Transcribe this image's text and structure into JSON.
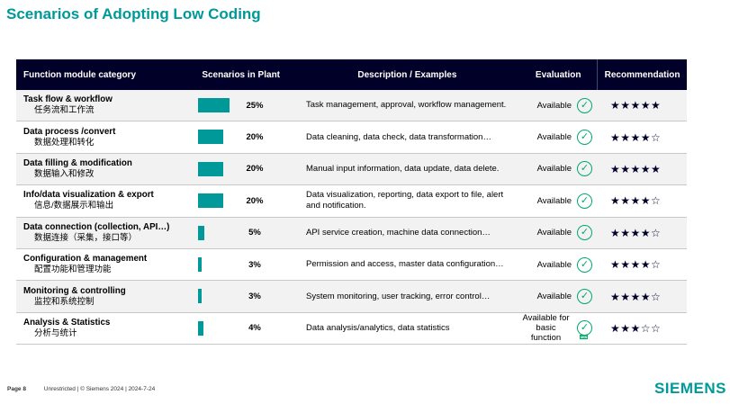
{
  "title": "Scenarios of Adopting Low Coding",
  "table": {
    "headers": [
      "Function module category",
      "Scenarios in Plant",
      "Description / Examples",
      "Evaluation",
      "Recommendation"
    ],
    "rows": [
      {
        "name_en": "Task flow & workflow",
        "name_zh": "任务流和工作流",
        "percent": 25,
        "percent_label": "25%",
        "description": "Task management, approval, workflow management.",
        "evaluation": "Available",
        "icon": "check-circle-icon",
        "stars": "★★★★★",
        "rating": 5
      },
      {
        "name_en": "Data process /convert",
        "name_zh": "数据处理和转化",
        "percent": 20,
        "percent_label": "20%",
        "description": "Data cleaning, data check, data transformation…",
        "evaluation": "Available",
        "icon": "check-circle-icon",
        "stars": "★★★★☆",
        "rating": 4
      },
      {
        "name_en": "Data filling & modification",
        "name_zh": "数据输入和修改",
        "percent": 20,
        "percent_label": "20%",
        "description": "Manual input information, data update, data delete.",
        "evaluation": "Available",
        "icon": "check-circle-icon",
        "stars": "★★★★★",
        "rating": 5
      },
      {
        "name_en": "Info/data visualization & export",
        "name_zh": "信息/数据展示和输出",
        "percent": 20,
        "percent_label": "20%",
        "description": "Data visualization, reporting, data export to file, alert and notification.",
        "evaluation": "Available",
        "icon": "check-circle-icon",
        "stars": "★★★★☆",
        "rating": 4
      },
      {
        "name_en": "Data connection (collection, API…)",
        "name_zh": "数据连接（采集，接口等）",
        "percent": 5,
        "percent_label": "5%",
        "description": "API service creation, machine data connection…",
        "evaluation": "Available",
        "icon": "check-circle-icon",
        "stars": "★★★★☆",
        "rating": 4
      },
      {
        "name_en": "Configuration & management",
        "name_zh": "配置功能和管理功能",
        "percent": 3,
        "percent_label": "3%",
        "description": "Permission and access, master data configuration…",
        "evaluation": "Available",
        "icon": "check-circle-icon",
        "stars": "★★★★☆",
        "rating": 4
      },
      {
        "name_en": "Monitoring & controlling",
        "name_zh": "监控和系统控制",
        "percent": 3,
        "percent_label": "3%",
        "description": "System monitoring, user tracking, error control…",
        "evaluation": "Available",
        "icon": "check-circle-icon",
        "stars": "★★★★☆",
        "rating": 4
      },
      {
        "name_en": "Analysis & Statistics",
        "name_zh": "分析与统计",
        "percent": 4,
        "percent_label": "4%",
        "description": "Data analysis/analytics, data statistics",
        "evaluation": "Available for basic function",
        "icon": "check-circle-min-icon",
        "icon_badge": "MIN",
        "stars": "★★★☆☆",
        "rating": 3
      }
    ]
  },
  "footer": {
    "page": "Page 8",
    "info": "Unrestricted | © Siemens 2024 | 2024-7-24"
  },
  "logo": "SIEMENS",
  "colors": {
    "accent": "#009999",
    "header_bg": "#000028",
    "check": "#00a86b"
  }
}
